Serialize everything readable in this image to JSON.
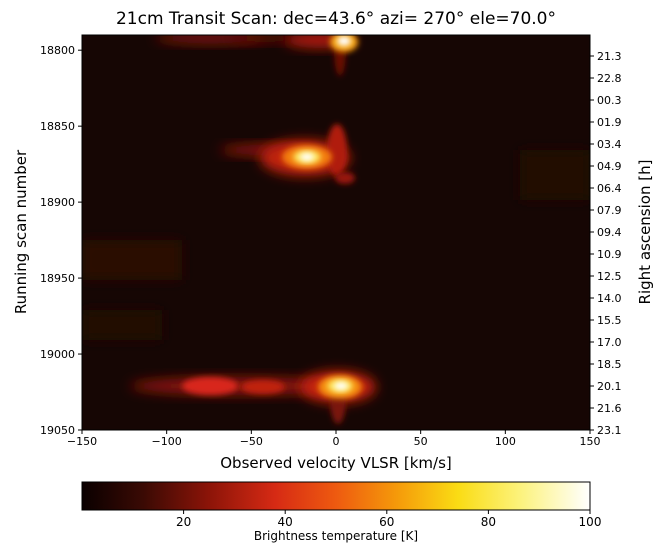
{
  "chart_data": {
    "type": "heatmap",
    "title": "21cm Transit Scan: dec=43.6° azi= 270° ele=70.0°",
    "xlabel": "Observed velocity VLSR [km/s]",
    "ylabel": "Running scan number",
    "y2label": "Right ascension [h]",
    "xlim": [
      -150,
      150
    ],
    "ylim": [
      19050,
      18790
    ],
    "x_ticks": [
      "−150",
      "−100",
      "−50",
      "0",
      "50",
      "100",
      "150"
    ],
    "x_tick_values": [
      -150,
      -100,
      -50,
      0,
      50,
      100,
      150
    ],
    "y_ticks": [
      "18800",
      "18850",
      "18900",
      "18950",
      "19000",
      "19050"
    ],
    "y_tick_values": [
      18800,
      18850,
      18900,
      18950,
      19000,
      19050
    ],
    "ra_ticks": [
      "21.3",
      "22.8",
      "00.3",
      "01.9",
      "03.4",
      "04.9",
      "06.4",
      "07.9",
      "09.4",
      "10.9",
      "12.5",
      "14.0",
      "15.5",
      "17.0",
      "18.5",
      "20.1",
      "21.6",
      "23.1"
    ],
    "colorbar": {
      "label": "Brightness temperature [K]",
      "range": [
        0,
        100
      ],
      "ticks": [
        "20",
        "40",
        "60",
        "80",
        "100"
      ],
      "tick_values": [
        20,
        40,
        60,
        80,
        100
      ],
      "colormap": "afmhot"
    },
    "features": [
      {
        "x": 3,
        "y": 18793,
        "peak_K": 95
      },
      {
        "x": -10,
        "y": 18792,
        "peak_K": 45
      },
      {
        "x": -80,
        "y": 18792,
        "peak_K": 35
      },
      {
        "x": -18,
        "y": 18870,
        "peak_K": 96
      },
      {
        "x": -60,
        "y": 18865,
        "peak_K": 40
      },
      {
        "x": 2,
        "y": 18866,
        "peak_K": 50
      },
      {
        "x": 5,
        "y": 19021,
        "peak_K": 97
      },
      {
        "x": -75,
        "y": 19022,
        "peak_K": 55
      },
      {
        "x": -45,
        "y": 19022,
        "peak_K": 45
      },
      {
        "x": -100,
        "y": 19021,
        "peak_K": 30
      },
      {
        "x": -20,
        "y": 19022,
        "peak_K": 40
      }
    ]
  }
}
